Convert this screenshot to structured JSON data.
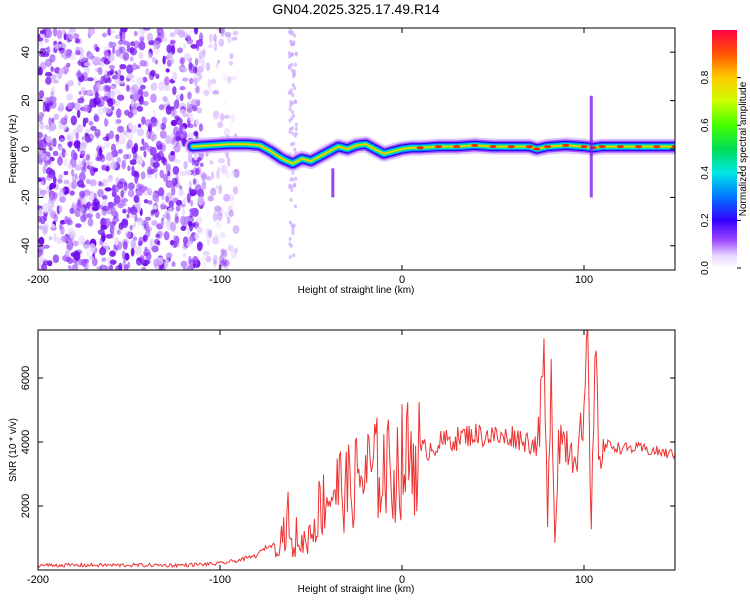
{
  "chart_data": [
    {
      "type": "heatmap",
      "title": "GN04.2025.325.17.49.R14",
      "xlabel": "Height of straight line (km)",
      "ylabel": "Frequency (Hz)",
      "xlim": [
        -200,
        150
      ],
      "ylim": [
        -50,
        50
      ],
      "xticks": [
        -200,
        -100,
        0,
        100
      ],
      "yticks": [
        -40,
        -20,
        0,
        20,
        40
      ],
      "colorbar": {
        "label": "Normalized spectral amplitude",
        "range": [
          0,
          1
        ],
        "ticks": [
          0.0,
          0.2,
          0.4,
          0.6,
          0.8
        ],
        "colormap": "rainbow"
      },
      "ridge": {
        "x": [
          -115,
          -105,
          -95,
          -85,
          -78,
          -72,
          -66,
          -60,
          -55,
          -50,
          -45,
          -40,
          -35,
          -30,
          -25,
          -20,
          -15,
          -10,
          -5,
          0,
          5,
          10,
          20,
          30,
          40,
          50,
          60,
          70,
          74,
          80,
          90,
          100,
          105,
          110,
          120,
          130,
          140,
          150
        ],
        "y": [
          1,
          1.5,
          2,
          2,
          1.5,
          -1,
          -4,
          -6,
          -4,
          -5,
          -3,
          -1,
          1,
          0,
          1.5,
          2,
          0,
          -2,
          -1,
          0,
          0.5,
          0.5,
          1,
          1,
          1.5,
          1,
          1,
          1,
          0,
          1,
          1.5,
          1,
          0.5,
          1,
          1,
          1,
          1,
          1
        ]
      },
      "noise_region_x": [
        -200,
        -110
      ]
    },
    {
      "type": "line",
      "title": "",
      "xlabel": "Height of straight line (km)",
      "ylabel": "SNR (10 * v/v)",
      "xlim": [
        -200,
        150
      ],
      "ylim": [
        0,
        7500
      ],
      "xticks": [
        -200,
        -100,
        0,
        100
      ],
      "yticks": [
        2000,
        4000,
        6000
      ],
      "line_color": "#ee3333",
      "series": [
        {
          "name": "SNR",
          "x": [
            -200,
            -180,
            -160,
            -140,
            -120,
            -100,
            -90,
            -80,
            -75,
            -70,
            -65,
            -62,
            -60,
            -58,
            -55,
            -50,
            -45,
            -40,
            -35,
            -30,
            -25,
            -20,
            -15,
            -10,
            -5,
            0,
            5,
            10,
            15,
            20,
            25,
            30,
            35,
            40,
            45,
            50,
            55,
            60,
            65,
            70,
            75,
            78,
            80,
            82,
            84,
            86,
            90,
            95,
            100,
            102,
            104,
            106,
            108,
            110,
            115,
            120,
            130,
            140,
            150
          ],
          "y": [
            150,
            150,
            150,
            150,
            150,
            200,
            300,
            450,
            700,
            800,
            1200,
            1700,
            300,
            1100,
            800,
            1200,
            2000,
            2400,
            2600,
            2500,
            2800,
            3000,
            3100,
            3200,
            3000,
            3400,
            3600,
            3700,
            3800,
            3950,
            4050,
            4100,
            4200,
            4250,
            4200,
            4200,
            4100,
            4200,
            4100,
            4000,
            3900,
            6800,
            1000,
            6500,
            1000,
            4200,
            4000,
            3800,
            4300,
            7500,
            600,
            7300,
            3800,
            3900,
            3900,
            3800,
            3800,
            3700,
            3600
          ]
        }
      ]
    }
  ]
}
